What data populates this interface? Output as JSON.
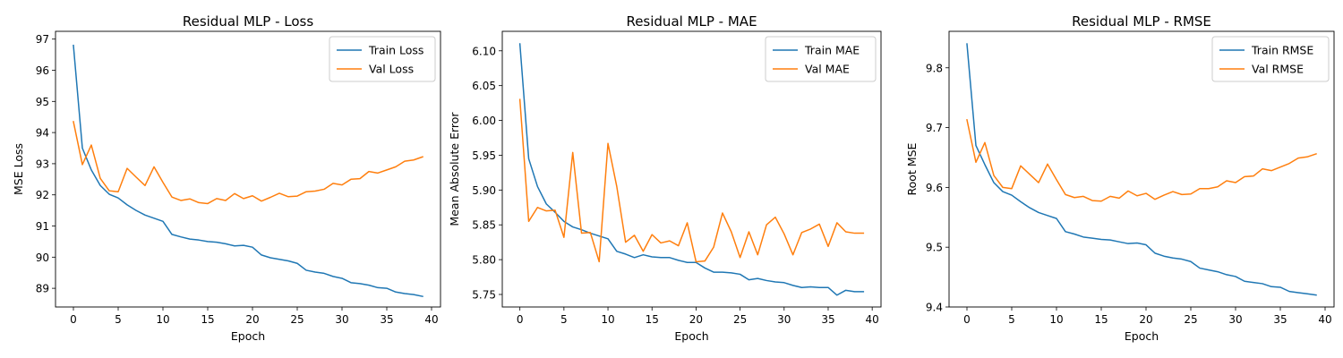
{
  "colors": {
    "train": "#1f77b4",
    "val": "#ff7f0e"
  },
  "chart_data": [
    {
      "type": "line",
      "title": "Residual MLP - Loss",
      "xlabel": "Epoch",
      "ylabel": "MSE Loss",
      "xlim": [
        -2,
        41
      ],
      "ylim": [
        88.4,
        97.25
      ],
      "xticks": [
        0,
        5,
        10,
        15,
        20,
        25,
        30,
        35,
        40
      ],
      "yticks": [
        89,
        90,
        91,
        92,
        93,
        94,
        95,
        96,
        97
      ],
      "yticklabels": [
        "89",
        "90",
        "91",
        "92",
        "93",
        "94",
        "95",
        "96",
        "97"
      ],
      "legend": "top-right",
      "x": [
        0,
        1,
        2,
        3,
        4,
        5,
        6,
        7,
        8,
        9,
        10,
        11,
        12,
        13,
        14,
        15,
        16,
        17,
        18,
        19,
        20,
        21,
        22,
        23,
        24,
        25,
        26,
        27,
        28,
        29,
        30,
        31,
        32,
        33,
        34,
        35,
        36,
        37,
        38,
        39
      ],
      "series": [
        {
          "name": "Train Loss",
          "color_key": "train",
          "values": [
            96.8,
            93.5,
            92.8,
            92.3,
            92.02,
            91.9,
            91.68,
            91.5,
            91.35,
            91.25,
            91.15,
            90.73,
            90.65,
            90.58,
            90.55,
            90.5,
            90.48,
            90.43,
            90.36,
            90.38,
            90.32,
            90.07,
            89.98,
            89.93,
            89.88,
            89.8,
            89.58,
            89.52,
            89.48,
            89.38,
            89.32,
            89.18,
            89.15,
            89.1,
            89.02,
            89.0,
            88.88,
            88.83,
            88.8,
            88.74
          ]
        },
        {
          "name": "Val Loss",
          "color_key": "val",
          "values": [
            94.35,
            92.97,
            93.6,
            92.53,
            92.13,
            92.1,
            92.85,
            92.57,
            92.3,
            92.9,
            92.4,
            91.93,
            91.82,
            91.87,
            91.75,
            91.72,
            91.88,
            91.82,
            92.04,
            91.88,
            91.97,
            91.8,
            91.92,
            92.05,
            91.94,
            91.96,
            92.1,
            92.12,
            92.18,
            92.37,
            92.32,
            92.5,
            92.52,
            92.75,
            92.7,
            92.8,
            92.9,
            93.08,
            93.12,
            93.22
          ]
        }
      ]
    },
    {
      "type": "line",
      "title": "Residual MLP - MAE",
      "xlabel": "Epoch",
      "ylabel": "Mean Absolute Error",
      "xlim": [
        -2,
        41
      ],
      "ylim": [
        5.732,
        6.128
      ],
      "xticks": [
        0,
        5,
        10,
        15,
        20,
        25,
        30,
        35,
        40
      ],
      "yticks": [
        5.75,
        5.8,
        5.85,
        5.9,
        5.95,
        6.0,
        6.05,
        6.1
      ],
      "yticklabels": [
        "5.75",
        "5.80",
        "5.85",
        "5.90",
        "5.95",
        "6.00",
        "6.05",
        "6.10"
      ],
      "legend": "top-right",
      "x": [
        0,
        1,
        2,
        3,
        4,
        5,
        6,
        7,
        8,
        9,
        10,
        11,
        12,
        13,
        14,
        15,
        16,
        17,
        18,
        19,
        20,
        21,
        22,
        23,
        24,
        25,
        26,
        27,
        28,
        29,
        30,
        31,
        32,
        33,
        34,
        35,
        36,
        37,
        38,
        39
      ],
      "series": [
        {
          "name": "Train MAE",
          "color_key": "train",
          "values": [
            6.11,
            5.945,
            5.905,
            5.88,
            5.868,
            5.855,
            5.847,
            5.843,
            5.838,
            5.834,
            5.83,
            5.812,
            5.808,
            5.803,
            5.807,
            5.804,
            5.803,
            5.803,
            5.799,
            5.796,
            5.796,
            5.788,
            5.782,
            5.782,
            5.781,
            5.779,
            5.771,
            5.773,
            5.77,
            5.768,
            5.767,
            5.763,
            5.76,
            5.761,
            5.76,
            5.76,
            5.749,
            5.756,
            5.754,
            5.754
          ]
        },
        {
          "name": "Val MAE",
          "color_key": "val",
          "values": [
            6.03,
            5.855,
            5.875,
            5.87,
            5.871,
            5.832,
            5.954,
            5.838,
            5.839,
            5.797,
            5.967,
            5.905,
            5.825,
            5.835,
            5.812,
            5.836,
            5.824,
            5.827,
            5.82,
            5.853,
            5.797,
            5.798,
            5.818,
            5.867,
            5.84,
            5.803,
            5.84,
            5.807,
            5.85,
            5.861,
            5.837,
            5.807,
            5.839,
            5.844,
            5.851,
            5.819,
            5.853,
            5.84,
            5.838,
            5.838
          ]
        }
      ]
    },
    {
      "type": "line",
      "title": "Residual MLP - RMSE",
      "xlabel": "Epoch",
      "ylabel": "Root MSE",
      "xlim": [
        -2,
        41
      ],
      "ylim": [
        9.4,
        9.861
      ],
      "xticks": [
        0,
        5,
        10,
        15,
        20,
        25,
        30,
        35,
        40
      ],
      "yticks": [
        9.4,
        9.5,
        9.6,
        9.7,
        9.8
      ],
      "yticklabels": [
        "9.4",
        "9.5",
        "9.6",
        "9.7",
        "9.8"
      ],
      "legend": "top-right",
      "x": [
        0,
        1,
        2,
        3,
        4,
        5,
        6,
        7,
        8,
        9,
        10,
        11,
        12,
        13,
        14,
        15,
        16,
        17,
        18,
        19,
        20,
        21,
        22,
        23,
        24,
        25,
        26,
        27,
        28,
        29,
        30,
        31,
        32,
        33,
        34,
        35,
        36,
        37,
        38,
        39
      ],
      "series": [
        {
          "name": "Train RMSE",
          "color_key": "train",
          "values": [
            9.84,
            9.67,
            9.638,
            9.608,
            9.593,
            9.587,
            9.576,
            9.566,
            9.558,
            9.553,
            9.548,
            9.526,
            9.522,
            9.517,
            9.515,
            9.513,
            9.512,
            9.509,
            9.506,
            9.507,
            9.504,
            9.49,
            9.485,
            9.482,
            9.48,
            9.476,
            9.465,
            9.462,
            9.459,
            9.454,
            9.451,
            9.443,
            9.441,
            9.439,
            9.434,
            9.433,
            9.426,
            9.424,
            9.422,
            9.42
          ]
        },
        {
          "name": "Val RMSE",
          "color_key": "val",
          "values": [
            9.713,
            9.642,
            9.675,
            9.62,
            9.6,
            9.598,
            9.636,
            9.622,
            9.608,
            9.639,
            9.613,
            9.588,
            9.583,
            9.585,
            9.578,
            9.577,
            9.585,
            9.582,
            9.594,
            9.586,
            9.59,
            9.58,
            9.587,
            9.593,
            9.588,
            9.589,
            9.598,
            9.598,
            9.601,
            9.611,
            9.608,
            9.618,
            9.619,
            9.631,
            9.628,
            9.634,
            9.64,
            9.649,
            9.651,
            9.656
          ]
        }
      ]
    }
  ]
}
